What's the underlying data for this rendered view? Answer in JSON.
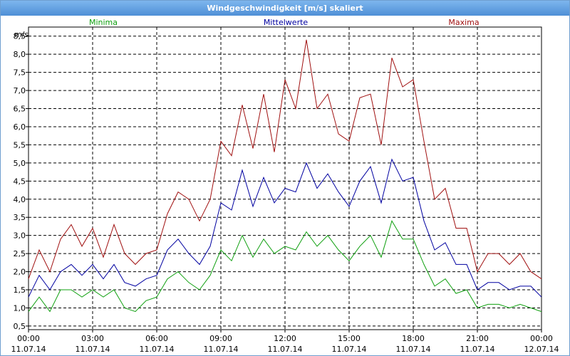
{
  "window": {
    "title": "Windgeschwindigkeit [m/s] skaliert"
  },
  "chart_data": {
    "type": "line",
    "ylabel": "m/s",
    "ylim": [
      0.4,
      8.75
    ],
    "yticks": [
      0.5,
      1.0,
      1.5,
      2.0,
      2.5,
      3.0,
      3.5,
      4.0,
      4.5,
      5.0,
      5.5,
      6.0,
      6.5,
      7.0,
      7.5,
      8.0,
      8.5
    ],
    "ytick_labels": [
      "0,5",
      "1,0",
      "1,5",
      "2,0",
      "2,5",
      "3,0",
      "3,5",
      "4,0",
      "4,5",
      "5,0",
      "5,5",
      "6,0",
      "6,5",
      "7,0",
      "7,5",
      "8,0",
      "8,5"
    ],
    "xlim": [
      0,
      24
    ],
    "xticks": [
      0,
      3,
      6,
      9,
      12,
      15,
      18,
      21,
      24
    ],
    "xtick_time": [
      "00:00",
      "03:00",
      "06:00",
      "09:00",
      "12:00",
      "15:00",
      "18:00",
      "21:00",
      "00:00"
    ],
    "xtick_date": [
      "11.07.14",
      "11.07.14",
      "11.07.14",
      "11.07.14",
      "11.07.14",
      "11.07.14",
      "11.07.14",
      "11.07.14",
      "12.07.14"
    ],
    "grid": true,
    "legend_position": "top",
    "series": [
      {
        "name": "Maxima",
        "color": "#a01010",
        "x": [
          0,
          0.5,
          1,
          1.5,
          2,
          2.5,
          3,
          3.5,
          4,
          4.5,
          5,
          5.5,
          6,
          6.5,
          7,
          7.5,
          8,
          8.5,
          9,
          9.5,
          10,
          10.5,
          11,
          11.5,
          12,
          12.5,
          13,
          13.5,
          14,
          14.5,
          15,
          15.5,
          16,
          16.5,
          17,
          17.5,
          18,
          18.5,
          19,
          19.5,
          20,
          20.5,
          21,
          21.5,
          22,
          22.5,
          23,
          23.5,
          24
        ],
        "values": [
          1.8,
          2.6,
          2.0,
          2.9,
          3.3,
          2.7,
          3.2,
          2.4,
          3.3,
          2.5,
          2.2,
          2.5,
          2.6,
          3.6,
          4.2,
          4.0,
          3.4,
          4.0,
          5.6,
          5.2,
          6.6,
          5.4,
          6.9,
          5.3,
          7.3,
          6.5,
          8.4,
          6.5,
          6.9,
          5.8,
          5.6,
          6.8,
          6.9,
          5.5,
          7.9,
          7.1,
          7.3,
          5.6,
          4.0,
          4.3,
          3.2,
          3.2,
          2.0,
          2.5,
          2.5,
          2.2,
          2.5,
          2.0,
          1.8
        ]
      },
      {
        "name": "Mittelwerte",
        "color": "#0000a0",
        "x": [
          0,
          0.5,
          1,
          1.5,
          2,
          2.5,
          3,
          3.5,
          4,
          4.5,
          5,
          5.5,
          6,
          6.5,
          7,
          7.5,
          8,
          8.5,
          9,
          9.5,
          10,
          10.5,
          11,
          11.5,
          12,
          12.5,
          13,
          13.5,
          14,
          14.5,
          15,
          15.5,
          16,
          16.5,
          17,
          17.5,
          18,
          18.5,
          19,
          19.5,
          20,
          20.5,
          21,
          21.5,
          22,
          22.5,
          23,
          23.5,
          24
        ],
        "values": [
          1.3,
          1.9,
          1.5,
          2.0,
          2.2,
          1.9,
          2.2,
          1.8,
          2.2,
          1.7,
          1.6,
          1.8,
          1.9,
          2.6,
          2.9,
          2.5,
          2.2,
          2.7,
          3.9,
          3.7,
          4.8,
          3.8,
          4.6,
          3.9,
          4.3,
          4.2,
          5.0,
          4.3,
          4.7,
          4.2,
          3.8,
          4.5,
          4.9,
          3.9,
          5.1,
          4.5,
          4.6,
          3.4,
          2.6,
          2.8,
          2.2,
          2.2,
          1.5,
          1.7,
          1.7,
          1.5,
          1.6,
          1.6,
          1.3
        ]
      },
      {
        "name": "Minima",
        "color": "#10a010",
        "x": [
          0,
          0.5,
          1,
          1.5,
          2,
          2.5,
          3,
          3.5,
          4,
          4.5,
          5,
          5.5,
          6,
          6.5,
          7,
          7.5,
          8,
          8.5,
          9,
          9.5,
          10,
          10.5,
          11,
          11.5,
          12,
          12.5,
          13,
          13.5,
          14,
          14.5,
          15,
          15.5,
          16,
          16.5,
          17,
          17.5,
          18,
          18.5,
          19,
          19.5,
          20,
          20.5,
          21,
          21.5,
          22,
          22.5,
          23,
          23.5,
          24
        ],
        "values": [
          0.9,
          1.3,
          0.9,
          1.5,
          1.5,
          1.3,
          1.5,
          1.3,
          1.5,
          1.0,
          0.9,
          1.2,
          1.3,
          1.8,
          2.0,
          1.7,
          1.5,
          1.9,
          2.6,
          2.3,
          3.0,
          2.4,
          2.9,
          2.5,
          2.7,
          2.6,
          3.1,
          2.7,
          3.0,
          2.6,
          2.3,
          2.7,
          3.0,
          2.4,
          3.4,
          2.9,
          2.9,
          2.2,
          1.6,
          1.8,
          1.4,
          1.5,
          1.0,
          1.1,
          1.1,
          1.0,
          1.1,
          1.0,
          0.9
        ]
      }
    ]
  }
}
